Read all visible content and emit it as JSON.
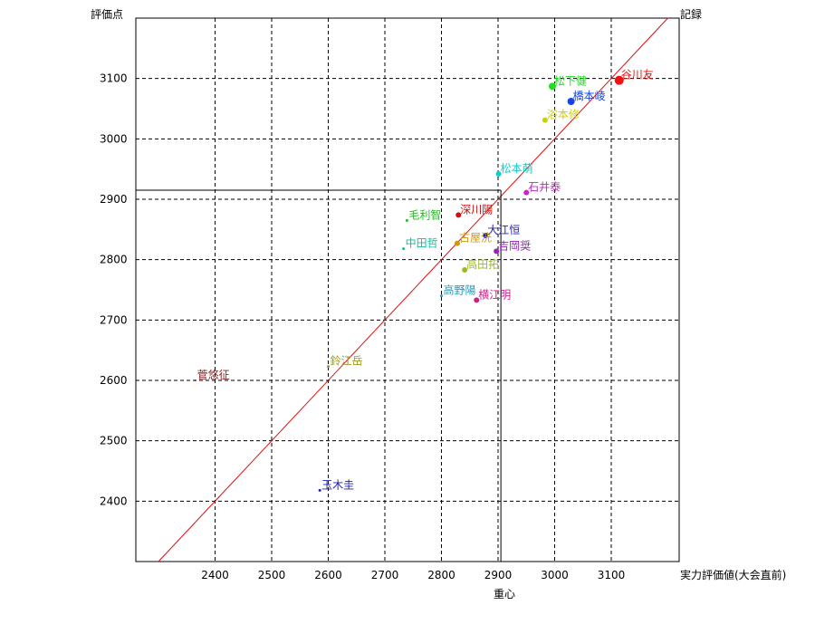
{
  "chart_data": {
    "type": "scatter",
    "ylabel": "評価点",
    "xlabel": "実力評価値(大会直前)",
    "x_center_label": "重心",
    "diagonal_label": "記録",
    "xlim": [
      2260,
      3220
    ],
    "ylim": [
      2300,
      3200
    ],
    "x_ticks": [
      2400,
      2500,
      2600,
      2700,
      2800,
      2900,
      3000,
      3100
    ],
    "y_ticks": [
      2400,
      2500,
      2600,
      2700,
      2800,
      2900,
      3000,
      3100
    ],
    "grid": true,
    "centroid": {
      "x": 2905,
      "y": 2915
    },
    "points": [
      {
        "name": "谷川友",
        "x": 3114,
        "y": 3097,
        "color": "#ee1111",
        "size": 5
      },
      {
        "name": "松下健",
        "x": 2996,
        "y": 3087,
        "color": "#22dd22",
        "size": 4
      },
      {
        "name": "橋本崚",
        "x": 3029,
        "y": 3062,
        "color": "#1144ee",
        "size": 4
      },
      {
        "name": "浴本修",
        "x": 2983,
        "y": 3031,
        "color": "#cccc11",
        "size": 3
      },
      {
        "name": "松本萌",
        "x": 2901,
        "y": 2942,
        "color": "#11cccc",
        "size": 3
      },
      {
        "name": "石井泰",
        "x": 2950,
        "y": 2911,
        "color": "#cc22cc",
        "size": 3
      },
      {
        "name": "深川陽",
        "x": 2830,
        "y": 2874,
        "color": "#cc1111",
        "size": 3
      },
      {
        "name": "毛利智",
        "x": 2739,
        "y": 2865,
        "color": "#22bb22",
        "size": 1.5
      },
      {
        "name": "大江恒",
        "x": 2878,
        "y": 2840,
        "color": "#2222aa",
        "size": 3
      },
      {
        "name": "古屋洸",
        "x": 2828,
        "y": 2827,
        "color": "#cc9911",
        "size": 3
      },
      {
        "name": "中田哲",
        "x": 2733,
        "y": 2818,
        "color": "#11bb99",
        "size": 1.5
      },
      {
        "name": "吉岡奨",
        "x": 2897,
        "y": 2814,
        "color": "#9922bb",
        "size": 3
      },
      {
        "name": "高田拓",
        "x": 2841,
        "y": 2783,
        "color": "#99bb22",
        "size": 3
      },
      {
        "name": "高野陽",
        "x": 2800,
        "y": 2740,
        "color": "#2299bb",
        "size": 1.5
      },
      {
        "name": "横江明",
        "x": 2862,
        "y": 2733,
        "color": "#cc2288",
        "size": 3
      },
      {
        "name": "鈴江岳",
        "x": 2600,
        "y": 2623,
        "color": "#999922",
        "size": 1.5
      },
      {
        "name": "菅悠征",
        "x": 2365,
        "y": 2600,
        "color": "#882222",
        "size": 1
      },
      {
        "name": "玉木圭",
        "x": 2585,
        "y": 2418,
        "color": "#2222aa",
        "size": 1.5
      }
    ]
  }
}
